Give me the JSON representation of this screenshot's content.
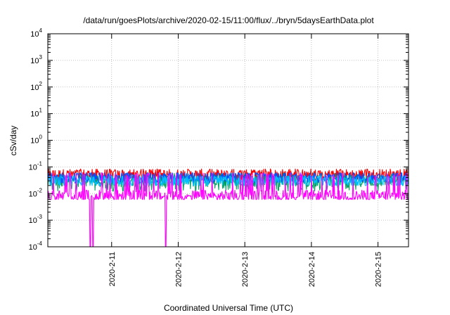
{
  "chart_data": {
    "type": "line",
    "title": "/data/run/goesPlots/archive/2020-02-15/11:00/flux/../bryn/5daysEarthData.plot",
    "xlabel": "Coordinated Universal Time (UTC)",
    "ylabel": "cSv/day",
    "y_scale": "log",
    "ylim": [
      0.0001,
      10000
    ],
    "xlim": [
      "2020-02-10T01:00",
      "2020-02-15T11:00"
    ],
    "x_ticks": [
      "2020-2-11",
      "2020-2-12",
      "2020-2-13",
      "2020-2-14",
      "2020-2-15"
    ],
    "y_ticks": [
      {
        "base": "10",
        "exp": "-4"
      },
      {
        "base": "10",
        "exp": "-3"
      },
      {
        "base": "10",
        "exp": "-2"
      },
      {
        "base": "10",
        "exp": "-1"
      },
      {
        "base": "10",
        "exp": "0"
      },
      {
        "base": "10",
        "exp": "1"
      },
      {
        "base": "10",
        "exp": "2"
      },
      {
        "base": "10",
        "exp": "3"
      },
      {
        "base": "10",
        "exp": "4"
      }
    ],
    "grid": true,
    "series": [
      {
        "color": "#ff0000",
        "level_low": 0.03,
        "level_high": 0.085,
        "mean": 0.05
      },
      {
        "color": "#00a060",
        "level_low": 0.012,
        "level_high": 0.06,
        "mean": 0.03
      },
      {
        "color": "#0050ff",
        "level_low": 0.025,
        "level_high": 0.06,
        "mean": 0.04
      },
      {
        "color": "#00c0ff",
        "level_low": 0.02,
        "level_high": 0.045,
        "mean": 0.03
      },
      {
        "color": "#ff00ff",
        "level_low": 0.006,
        "level_high": 0.06,
        "mean": 0.008,
        "dropouts": [
          {
            "start": "2020-02-10T16:10",
            "end": "2020-02-10T16:30"
          },
          {
            "start": "2020-02-10T17:10",
            "end": "2020-02-10T17:30"
          },
          {
            "start": "2020-02-11T19:20",
            "end": "2020-02-11T19:45"
          }
        ]
      }
    ]
  }
}
